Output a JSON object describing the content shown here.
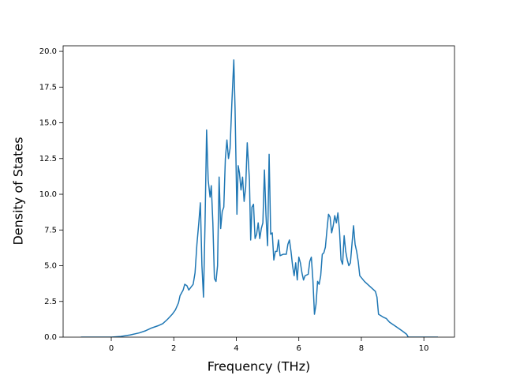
{
  "chart_data": {
    "type": "line",
    "xlabel": "Frequency (THz)",
    "ylabel": "Density of States",
    "x": [
      -0.97,
      0,
      0.3,
      0.6,
      0.9,
      1.1,
      1.3,
      1.5,
      1.65,
      1.8,
      1.95,
      2.05,
      2.15,
      2.2,
      2.3,
      2.35,
      2.42,
      2.48,
      2.55,
      2.62,
      2.68,
      2.74,
      2.8,
      2.85,
      2.9,
      2.95,
      3.0,
      3.05,
      3.1,
      3.16,
      3.2,
      3.25,
      3.3,
      3.35,
      3.4,
      3.45,
      3.5,
      3.55,
      3.6,
      3.65,
      3.7,
      3.75,
      3.8,
      3.86,
      3.92,
      3.96,
      4.02,
      4.06,
      4.1,
      4.15,
      4.2,
      4.25,
      4.3,
      4.35,
      4.42,
      4.46,
      4.5,
      4.55,
      4.6,
      4.65,
      4.7,
      4.75,
      4.8,
      4.85,
      4.9,
      4.95,
      5.0,
      5.05,
      5.1,
      5.15,
      5.2,
      5.25,
      5.3,
      5.35,
      5.4,
      5.5,
      5.6,
      5.65,
      5.7,
      5.75,
      5.8,
      5.85,
      5.9,
      5.95,
      6.0,
      6.05,
      6.1,
      6.15,
      6.2,
      6.3,
      6.35,
      6.4,
      6.45,
      6.5,
      6.55,
      6.6,
      6.65,
      6.7,
      6.75,
      6.8,
      6.85,
      6.9,
      6.95,
      7.0,
      7.05,
      7.1,
      7.15,
      7.2,
      7.25,
      7.3,
      7.35,
      7.4,
      7.45,
      7.5,
      7.55,
      7.6,
      7.65,
      7.7,
      7.75,
      7.8,
      7.85,
      7.9,
      7.95,
      8.1,
      8.3,
      8.45,
      8.5,
      8.55,
      8.7,
      8.8,
      8.9,
      9.1,
      9.3,
      9.45,
      9.5,
      10.45
    ],
    "values": [
      0,
      0,
      0.05,
      0.15,
      0.3,
      0.45,
      0.65,
      0.8,
      0.95,
      1.25,
      1.6,
      1.9,
      2.4,
      2.9,
      3.3,
      3.7,
      3.6,
      3.3,
      3.5,
      3.7,
      4.5,
      6.5,
      8.0,
      9.4,
      5.0,
      2.8,
      8.0,
      14.5,
      11.0,
      9.8,
      10.6,
      8.0,
      4.1,
      3.9,
      5.0,
      11.2,
      7.6,
      8.8,
      9.1,
      12.5,
      13.8,
      12.5,
      13.2,
      16.5,
      19.4,
      16.0,
      8.6,
      12.0,
      11.5,
      10.3,
      11.2,
      9.5,
      10.5,
      13.6,
      11.0,
      6.8,
      9.1,
      9.3,
      6.9,
      7.2,
      8.0,
      6.9,
      7.6,
      8.0,
      11.7,
      8.5,
      6.4,
      12.8,
      7.2,
      7.3,
      5.4,
      6.0,
      6.0,
      6.8,
      5.7,
      5.8,
      5.8,
      6.5,
      6.8,
      6.0,
      5.0,
      4.3,
      5.2,
      4.0,
      5.6,
      5.2,
      4.5,
      4.0,
      4.3,
      4.4,
      5.3,
      5.6,
      4.0,
      1.6,
      2.3,
      3.9,
      3.7,
      4.3,
      5.8,
      5.9,
      6.3,
      7.5,
      8.6,
      8.4,
      7.3,
      7.8,
      8.5,
      8.0,
      8.7,
      7.5,
      5.4,
      5.1,
      7.1,
      6.0,
      5.4,
      5.0,
      5.2,
      6.5,
      7.8,
      6.5,
      6.0,
      5.3,
      4.3,
      3.9,
      3.5,
      3.2,
      2.8,
      1.6,
      1.4,
      1.3,
      1.05,
      0.75,
      0.45,
      0.2,
      0.0,
      0
    ],
    "color": "#1f77b4",
    "xlim": [
      -1.54,
      10.98
    ],
    "xticks": [
      0,
      2,
      4,
      6,
      8,
      10
    ],
    "ylim": [
      0,
      20.39
    ],
    "yticks": [
      {
        "value": 0,
        "label": "0.0"
      },
      {
        "value": 2.5,
        "label": "2.5"
      },
      {
        "value": 5,
        "label": "5.0"
      },
      {
        "value": 7.5,
        "label": "7.5"
      },
      {
        "value": 10,
        "label": "10.0"
      },
      {
        "value": 12.5,
        "label": "12.5"
      },
      {
        "value": 15,
        "label": "15.0"
      },
      {
        "value": 17.5,
        "label": "17.5"
      },
      {
        "value": 20,
        "label": "20.0"
      }
    ]
  }
}
